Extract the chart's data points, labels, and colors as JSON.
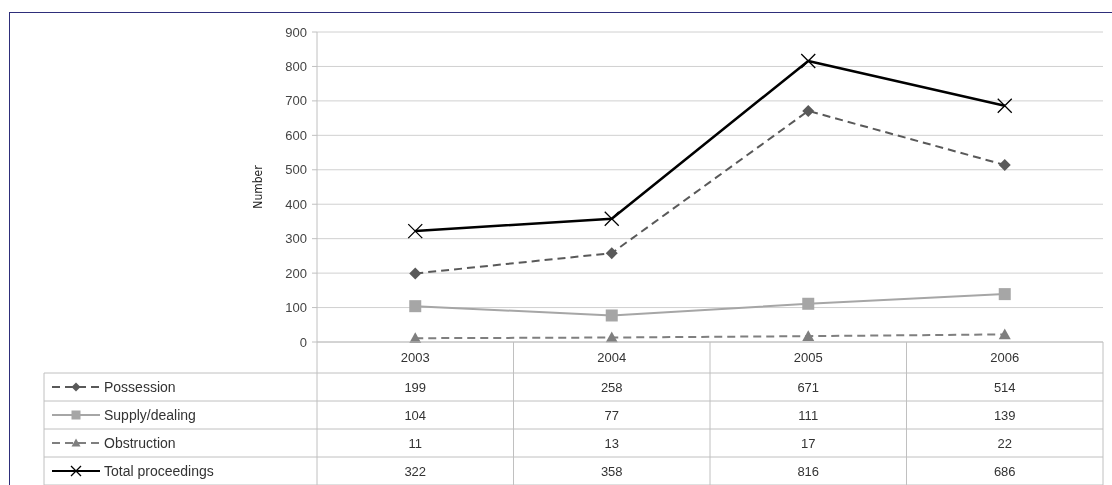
{
  "chart_data": {
    "type": "line",
    "ylabel": "Number",
    "categories": [
      "2003",
      "2004",
      "2005",
      "2006"
    ],
    "series": [
      {
        "name": "Possession",
        "color": "#595959",
        "values": [
          199,
          258,
          671,
          514
        ],
        "line_style": "dashed",
        "marker": "diamond"
      },
      {
        "name": "Supply/dealing",
        "color": "#a6a6a6",
        "values": [
          104,
          77,
          111,
          139
        ],
        "line_style": "solid",
        "marker": "square"
      },
      {
        "name": "Obstruction",
        "color": "#7f7f7f",
        "values": [
          11,
          13,
          17,
          22
        ],
        "line_style": "dashed",
        "marker": "triangle"
      },
      {
        "name": "Total proceedings",
        "color": "#000000",
        "values": [
          322,
          358,
          816,
          686
        ],
        "line_style": "solid",
        "marker": "cross"
      }
    ],
    "ylim": [
      0,
      900
    ],
    "yticks": [
      0,
      100,
      200,
      300,
      400,
      500,
      600,
      700,
      800,
      900
    ],
    "grid": "y",
    "legend": "bottom",
    "data_labels": true
  }
}
